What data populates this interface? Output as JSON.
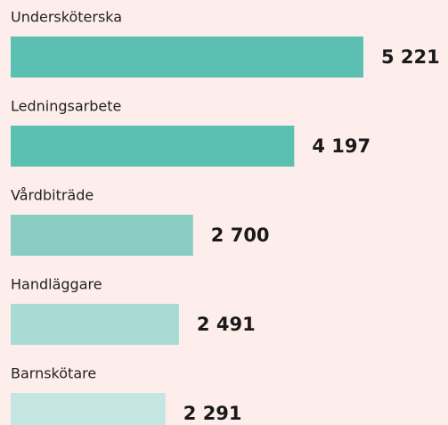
{
  "chart_data": {
    "type": "bar",
    "orientation": "horizontal",
    "categories": [
      "Undersköterska",
      "Ledningsarbete",
      "Vårdbiträde",
      "Handläggare",
      "Barnskötare"
    ],
    "values": [
      5221,
      4197,
      2700,
      2491,
      2291
    ],
    "value_labels": [
      "5 221",
      "4 197",
      "2 700",
      "2 491",
      "2 291"
    ],
    "colors": [
      "#5bbfb1",
      "#5bbfb1",
      "#89cdc2",
      "#a7dbd3",
      "#c4e6e0"
    ]
  }
}
